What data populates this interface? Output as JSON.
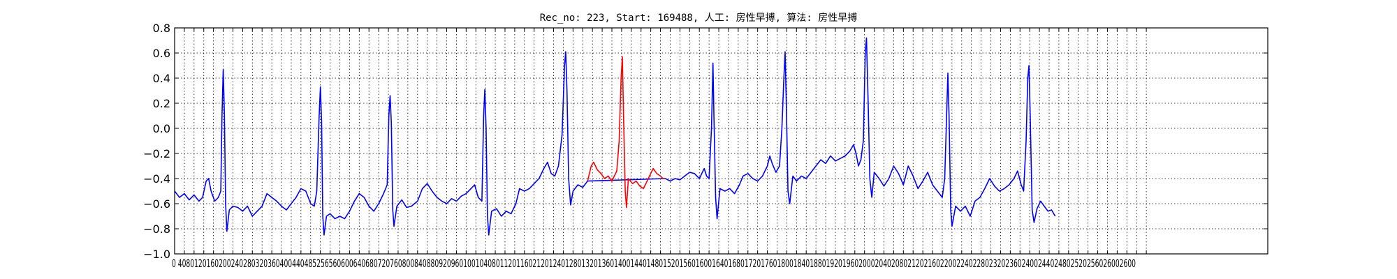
{
  "chart_data": {
    "type": "line",
    "title": "Rec_no: 223, Start: 169488, 人工: 房性早搏, 算法: 房性早搏",
    "xlabel": "",
    "ylabel": "",
    "xlim": [
      0,
      4500
    ],
    "ylim": [
      -1.0,
      0.8
    ],
    "grid": true,
    "grid_style": "dotted",
    "yticks": [
      -1.0,
      -0.8,
      -0.6,
      -0.4,
      -0.2,
      0.0,
      0.2,
      0.4,
      0.6,
      0.8
    ],
    "ytick_labels": [
      "−1.0",
      "−0.8",
      "−0.6",
      "−0.4",
      "−0.2",
      "0.0",
      "0.2",
      "0.4",
      "0.6",
      "0.8"
    ],
    "xtick_step": 40,
    "xtick_max": 4000,
    "xtick_labels_rendered": "0 4080120160200240280320360400440485256560600640680720760800840880920960100104080112011602120124012801320136014001440148015201560160016401680172017601800184018801920196020002040208021202160220022402280232023602400244024802520256026002600",
    "series": [
      {
        "color": "#0000ff",
        "segment_ranges": [
          [
            0,
            1700
          ],
          [
            2020,
            4000
          ]
        ],
        "points": [
          [
            0,
            -0.5
          ],
          [
            20,
            -0.55
          ],
          [
            40,
            -0.52
          ],
          [
            60,
            -0.57
          ],
          [
            80,
            -0.53
          ],
          [
            100,
            -0.58
          ],
          [
            115,
            -0.55
          ],
          [
            130,
            -0.42
          ],
          [
            140,
            -0.4
          ],
          [
            150,
            -0.5
          ],
          [
            165,
            -0.58
          ],
          [
            180,
            -0.55
          ],
          [
            190,
            -0.5
          ],
          [
            195,
            0.1
          ],
          [
            200,
            0.47
          ],
          [
            205,
            0.1
          ],
          [
            210,
            -0.6
          ],
          [
            215,
            -0.82
          ],
          [
            225,
            -0.65
          ],
          [
            240,
            -0.62
          ],
          [
            260,
            -0.63
          ],
          [
            280,
            -0.66
          ],
          [
            300,
            -0.62
          ],
          [
            320,
            -0.7
          ],
          [
            340,
            -0.66
          ],
          [
            360,
            -0.62
          ],
          [
            380,
            -0.52
          ],
          [
            400,
            -0.55
          ],
          [
            420,
            -0.58
          ],
          [
            440,
            -0.62
          ],
          [
            460,
            -0.65
          ],
          [
            480,
            -0.6
          ],
          [
            500,
            -0.55
          ],
          [
            520,
            -0.48
          ],
          [
            540,
            -0.5
          ],
          [
            560,
            -0.6
          ],
          [
            575,
            -0.62
          ],
          [
            585,
            -0.5
          ],
          [
            595,
            0.1
          ],
          [
            600,
            0.33
          ],
          [
            605,
            0.05
          ],
          [
            610,
            -0.7
          ],
          [
            615,
            -0.85
          ],
          [
            625,
            -0.7
          ],
          [
            640,
            -0.68
          ],
          [
            660,
            -0.72
          ],
          [
            680,
            -0.7
          ],
          [
            700,
            -0.72
          ],
          [
            720,
            -0.66
          ],
          [
            740,
            -0.58
          ],
          [
            760,
            -0.52
          ],
          [
            780,
            -0.55
          ],
          [
            800,
            -0.62
          ],
          [
            820,
            -0.66
          ],
          [
            840,
            -0.6
          ],
          [
            860,
            -0.52
          ],
          [
            875,
            -0.45
          ],
          [
            882,
            0.1
          ],
          [
            887,
            0.26
          ],
          [
            892,
            0.05
          ],
          [
            898,
            -0.65
          ],
          [
            903,
            -0.78
          ],
          [
            915,
            -0.62
          ],
          [
            935,
            -0.57
          ],
          [
            955,
            -0.63
          ],
          [
            975,
            -0.62
          ],
          [
            1000,
            -0.58
          ],
          [
            1020,
            -0.48
          ],
          [
            1040,
            -0.44
          ],
          [
            1060,
            -0.5
          ],
          [
            1080,
            -0.55
          ],
          [
            1100,
            -0.58
          ],
          [
            1120,
            -0.6
          ],
          [
            1140,
            -0.56
          ],
          [
            1160,
            -0.58
          ],
          [
            1180,
            -0.54
          ],
          [
            1200,
            -0.52
          ],
          [
            1220,
            -0.48
          ],
          [
            1235,
            -0.45
          ],
          [
            1250,
            -0.55
          ],
          [
            1265,
            -0.58
          ],
          [
            1272,
            0.1
          ],
          [
            1277,
            0.31
          ],
          [
            1282,
            0.0
          ],
          [
            1288,
            -0.7
          ],
          [
            1293,
            -0.85
          ],
          [
            1305,
            -0.66
          ],
          [
            1325,
            -0.64
          ],
          [
            1345,
            -0.7
          ],
          [
            1365,
            -0.66
          ],
          [
            1385,
            -0.68
          ],
          [
            1405,
            -0.6
          ],
          [
            1420,
            -0.48
          ],
          [
            1440,
            -0.5
          ],
          [
            1460,
            -0.48
          ],
          [
            1480,
            -0.44
          ],
          [
            1500,
            -0.4
          ],
          [
            1520,
            -0.32
          ],
          [
            1535,
            -0.27
          ],
          [
            1550,
            -0.36
          ],
          [
            1565,
            -0.38
          ],
          [
            1580,
            -0.3
          ],
          [
            1595,
            -0.05
          ],
          [
            1605,
            0.5
          ],
          [
            1610,
            0.61
          ],
          [
            1615,
            0.3
          ],
          [
            1622,
            -0.4
          ],
          [
            1630,
            -0.61
          ],
          [
            1640,
            -0.5
          ],
          [
            1660,
            -0.45
          ],
          [
            1680,
            -0.47
          ],
          [
            1700,
            -0.42
          ],
          [
            2020,
            -0.4
          ],
          [
            2040,
            -0.42
          ],
          [
            2060,
            -0.4
          ],
          [
            2080,
            -0.41
          ],
          [
            2100,
            -0.38
          ],
          [
            2120,
            -0.35
          ],
          [
            2140,
            -0.36
          ],
          [
            2160,
            -0.4
          ],
          [
            2180,
            -0.32
          ],
          [
            2190,
            -0.38
          ],
          [
            2200,
            -0.4
          ],
          [
            2210,
            0.0
          ],
          [
            2216,
            0.52
          ],
          [
            2220,
            0.1
          ],
          [
            2227,
            -0.55
          ],
          [
            2233,
            -0.72
          ],
          [
            2245,
            -0.48
          ],
          [
            2265,
            -0.5
          ],
          [
            2285,
            -0.48
          ],
          [
            2305,
            -0.52
          ],
          [
            2325,
            -0.45
          ],
          [
            2340,
            -0.38
          ],
          [
            2360,
            -0.36
          ],
          [
            2380,
            -0.4
          ],
          [
            2400,
            -0.42
          ],
          [
            2420,
            -0.38
          ],
          [
            2440,
            -0.3
          ],
          [
            2450,
            -0.22
          ],
          [
            2460,
            -0.28
          ],
          [
            2475,
            -0.35
          ],
          [
            2490,
            -0.3
          ],
          [
            2500,
            0.0
          ],
          [
            2508,
            0.4
          ],
          [
            2513,
            0.61
          ],
          [
            2518,
            0.2
          ],
          [
            2525,
            -0.5
          ],
          [
            2532,
            -0.6
          ],
          [
            2545,
            -0.38
          ],
          [
            2560,
            -0.42
          ],
          [
            2580,
            -0.38
          ],
          [
            2600,
            -0.4
          ],
          [
            2620,
            -0.35
          ],
          [
            2640,
            -0.3
          ],
          [
            2660,
            -0.25
          ],
          [
            2680,
            -0.28
          ],
          [
            2700,
            -0.22
          ],
          [
            2720,
            -0.26
          ],
          [
            2740,
            -0.24
          ],
          [
            2760,
            -0.22
          ],
          [
            2780,
            -0.18
          ],
          [
            2795,
            -0.13
          ],
          [
            2805,
            -0.2
          ],
          [
            2815,
            -0.3
          ],
          [
            2825,
            -0.25
          ],
          [
            2835,
            -0.1
          ],
          [
            2843,
            0.6
          ],
          [
            2848,
            0.72
          ],
          [
            2855,
            0.2
          ],
          [
            2862,
            -0.4
          ],
          [
            2870,
            -0.55
          ],
          [
            2880,
            -0.35
          ],
          [
            2900,
            -0.4
          ],
          [
            2920,
            -0.46
          ],
          [
            2940,
            -0.4
          ],
          [
            2960,
            -0.3
          ],
          [
            2980,
            -0.36
          ],
          [
            3000,
            -0.45
          ],
          [
            3020,
            -0.3
          ],
          [
            3040,
            -0.38
          ],
          [
            3060,
            -0.48
          ],
          [
            3080,
            -0.42
          ],
          [
            3100,
            -0.35
          ],
          [
            3120,
            -0.45
          ],
          [
            3140,
            -0.5
          ],
          [
            3160,
            -0.55
          ],
          [
            3170,
            -0.4
          ],
          [
            3178,
            0.1
          ],
          [
            3183,
            0.44
          ],
          [
            3188,
            0.1
          ],
          [
            3195,
            -0.65
          ],
          [
            3200,
            -0.78
          ],
          [
            3215,
            -0.62
          ],
          [
            3235,
            -0.66
          ],
          [
            3255,
            -0.62
          ],
          [
            3275,
            -0.7
          ],
          [
            3295,
            -0.58
          ],
          [
            3315,
            -0.55
          ],
          [
            3335,
            -0.48
          ],
          [
            3355,
            -0.4
          ],
          [
            3375,
            -0.46
          ],
          [
            3395,
            -0.5
          ],
          [
            3415,
            -0.48
          ],
          [
            3435,
            -0.45
          ],
          [
            3455,
            -0.4
          ],
          [
            3470,
            -0.34
          ],
          [
            3485,
            -0.45
          ],
          [
            3495,
            -0.5
          ],
          [
            3505,
            -0.1
          ],
          [
            3512,
            0.4
          ],
          [
            3517,
            0.5
          ],
          [
            3522,
            0.1
          ],
          [
            3530,
            -0.65
          ],
          [
            3538,
            -0.75
          ],
          [
            3550,
            -0.64
          ],
          [
            3565,
            -0.58
          ],
          [
            3580,
            -0.62
          ],
          [
            3595,
            -0.66
          ],
          [
            3610,
            -0.65
          ],
          [
            3625,
            -0.7
          ]
        ]
      },
      {
        "color": "#ff0000",
        "points": [
          [
            1700,
            -0.42
          ],
          [
            1715,
            -0.3
          ],
          [
            1725,
            -0.27
          ],
          [
            1740,
            -0.33
          ],
          [
            1755,
            -0.36
          ],
          [
            1770,
            -0.4
          ],
          [
            1785,
            -0.38
          ],
          [
            1800,
            -0.42
          ],
          [
            1810,
            -0.38
          ],
          [
            1820,
            -0.34
          ],
          [
            1830,
            -0.1
          ],
          [
            1838,
            0.4
          ],
          [
            1843,
            0.57
          ],
          [
            1848,
            0.1
          ],
          [
            1855,
            -0.5
          ],
          [
            1860,
            -0.63
          ],
          [
            1868,
            -0.4
          ],
          [
            1885,
            -0.44
          ],
          [
            1900,
            -0.42
          ],
          [
            1915,
            -0.46
          ],
          [
            1930,
            -0.48
          ],
          [
            1945,
            -0.42
          ],
          [
            1960,
            -0.36
          ],
          [
            1970,
            -0.32
          ],
          [
            1985,
            -0.36
          ],
          [
            2000,
            -0.38
          ],
          [
            2010,
            -0.4
          ],
          [
            2020,
            -0.4
          ]
        ]
      }
    ]
  }
}
